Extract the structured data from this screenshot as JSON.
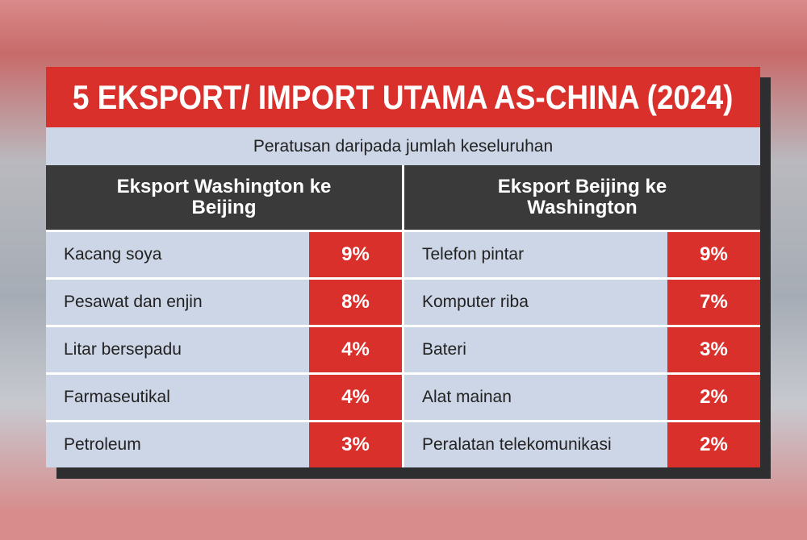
{
  "header": {
    "title": "5 EKSPORT/ IMPORT UTAMA AS-CHINA (2024)",
    "subtitle": "Peratusan daripada jumlah keseluruhan"
  },
  "columns": [
    {
      "heading": "Eksport Washington ke Beijing",
      "rows": [
        [
          "Kacang soya",
          "9%"
        ],
        [
          "Pesawat dan enjin",
          "8%"
        ],
        [
          "Litar bersepadu",
          "4%"
        ],
        [
          "Farmaseutikal",
          "4%"
        ],
        [
          "Petroleum",
          "3%"
        ]
      ]
    },
    {
      "heading": "Eksport Beijing ke Washington",
      "rows": [
        [
          "Telefon pintar",
          "9%"
        ],
        [
          "Komputer riba",
          "7%"
        ],
        [
          "Bateri",
          "3%"
        ],
        [
          "Alat mainan",
          "2%"
        ],
        [
          "Peralatan telekomunikasi",
          "2%"
        ]
      ]
    }
  ]
}
